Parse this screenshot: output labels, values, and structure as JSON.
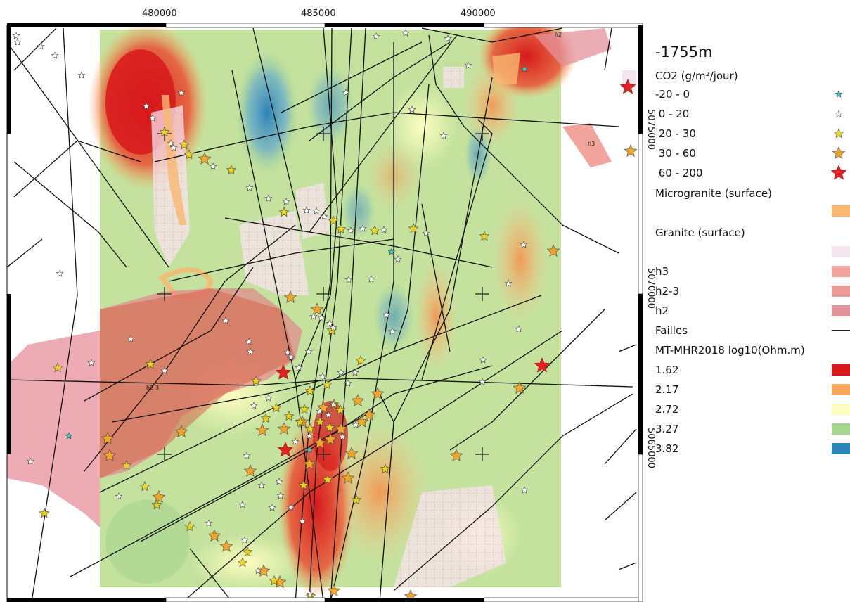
{
  "map": {
    "depth_label": "-1755m",
    "x_ticks": [
      "480000",
      "485000",
      "490000"
    ],
    "y_ticks": [
      "5075000",
      "5070000",
      "5065000"
    ],
    "zone_labels": [
      {
        "id": "h2",
        "text": "h2"
      },
      {
        "id": "h3",
        "text": "h3"
      },
      {
        "id": "h2-3",
        "text": "h2-3"
      }
    ]
  },
  "legend": {
    "co2_title": "CO2 (g/m²/jour)",
    "co2_classes": [
      {
        "label": "-20 - 0",
        "color": "#3fc9c9",
        "size": "small"
      },
      {
        "label": " 0 - 20",
        "color": "#ffffff",
        "size": "small"
      },
      {
        "label": " 20 - 30",
        "color": "#e8d41e",
        "size": "medium"
      },
      {
        "label": " 30 - 60",
        "color": "#f0a62a",
        "size": "large"
      },
      {
        "label": " 60 - 200",
        "color": "#e02424",
        "size": "xlarge"
      }
    ],
    "microgranite_label": "Microgranite (surface)",
    "microgranite_color": "#f8b870",
    "granite_label": "Granite (surface)",
    "granite_color": "#f6e4ee",
    "units": [
      {
        "label": "h3",
        "color": "#f2a59d"
      },
      {
        "label": "h2-3",
        "color": "#ee9b96"
      },
      {
        "label": "h2",
        "color": "#e3919b"
      }
    ],
    "faults_label": "Failles",
    "mt_title": "MT-MHR2018 log10(Ohm.m)",
    "mt_classes": [
      {
        "label": "1.62",
        "color": "#d7191c"
      },
      {
        "label": "2.17",
        "color": "#f6a95c"
      },
      {
        "label": "2.72",
        "color": "#fdfdbf"
      },
      {
        "label": "3.27",
        "color": "#a6d590"
      },
      {
        "label": "3.82",
        "color": "#2b83ba"
      }
    ]
  }
}
